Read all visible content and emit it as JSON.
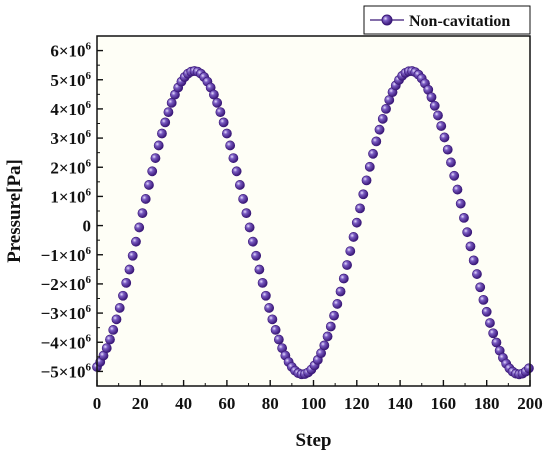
{
  "chart_data": {
    "type": "scatter",
    "title": "",
    "xlabel": "Step",
    "ylabel": "Pressure[Pa]",
    "xlim": [
      0,
      200
    ],
    "ylim": [
      -5500000,
      6500000
    ],
    "x_ticks": [
      0,
      20,
      40,
      60,
      80,
      100,
      120,
      140,
      160,
      180,
      200
    ],
    "x_tick_labels": [
      "0",
      "20",
      "40",
      "60",
      "80",
      "100",
      "120",
      "140",
      "160",
      "180",
      "200"
    ],
    "y_ticks": [
      -5000000,
      -4000000,
      -3000000,
      -2000000,
      -1000000,
      0,
      1000000,
      2000000,
      3000000,
      4000000,
      5000000,
      6000000
    ],
    "y_tick_labels": [
      {
        "prefix": "−5×10",
        "exp": "6"
      },
      {
        "prefix": "−4×10",
        "exp": "6"
      },
      {
        "prefix": "−3×10",
        "exp": "6"
      },
      {
        "prefix": "−2×10",
        "exp": "6"
      },
      {
        "prefix": "−1×10",
        "exp": "6"
      },
      {
        "prefix": "0",
        "exp": ""
      },
      {
        "prefix": "1×10",
        "exp": "6"
      },
      {
        "prefix": "2×10",
        "exp": "6"
      },
      {
        "prefix": "3×10",
        "exp": "6"
      },
      {
        "prefix": "4×10",
        "exp": "6"
      },
      {
        "prefix": "5×10",
        "exp": "6"
      },
      {
        "prefix": "6×10",
        "exp": "6"
      }
    ],
    "legend": "top-right",
    "grid": false,
    "plot_background": "#fefef6",
    "series": [
      {
        "name": "Non-cavitation",
        "color": "#3a1878",
        "x_start": 0,
        "x_end": 200,
        "x_step": 1.5,
        "model": "sinusoid",
        "amplitude": 5200000,
        "offset": 100000,
        "period_steps": 100,
        "min_at_step": -5,
        "note_values": "y(x) = offset + amplitude * sin(2*pi*(x - min_at_step)/period_steps - pi/2)"
      }
    ]
  }
}
